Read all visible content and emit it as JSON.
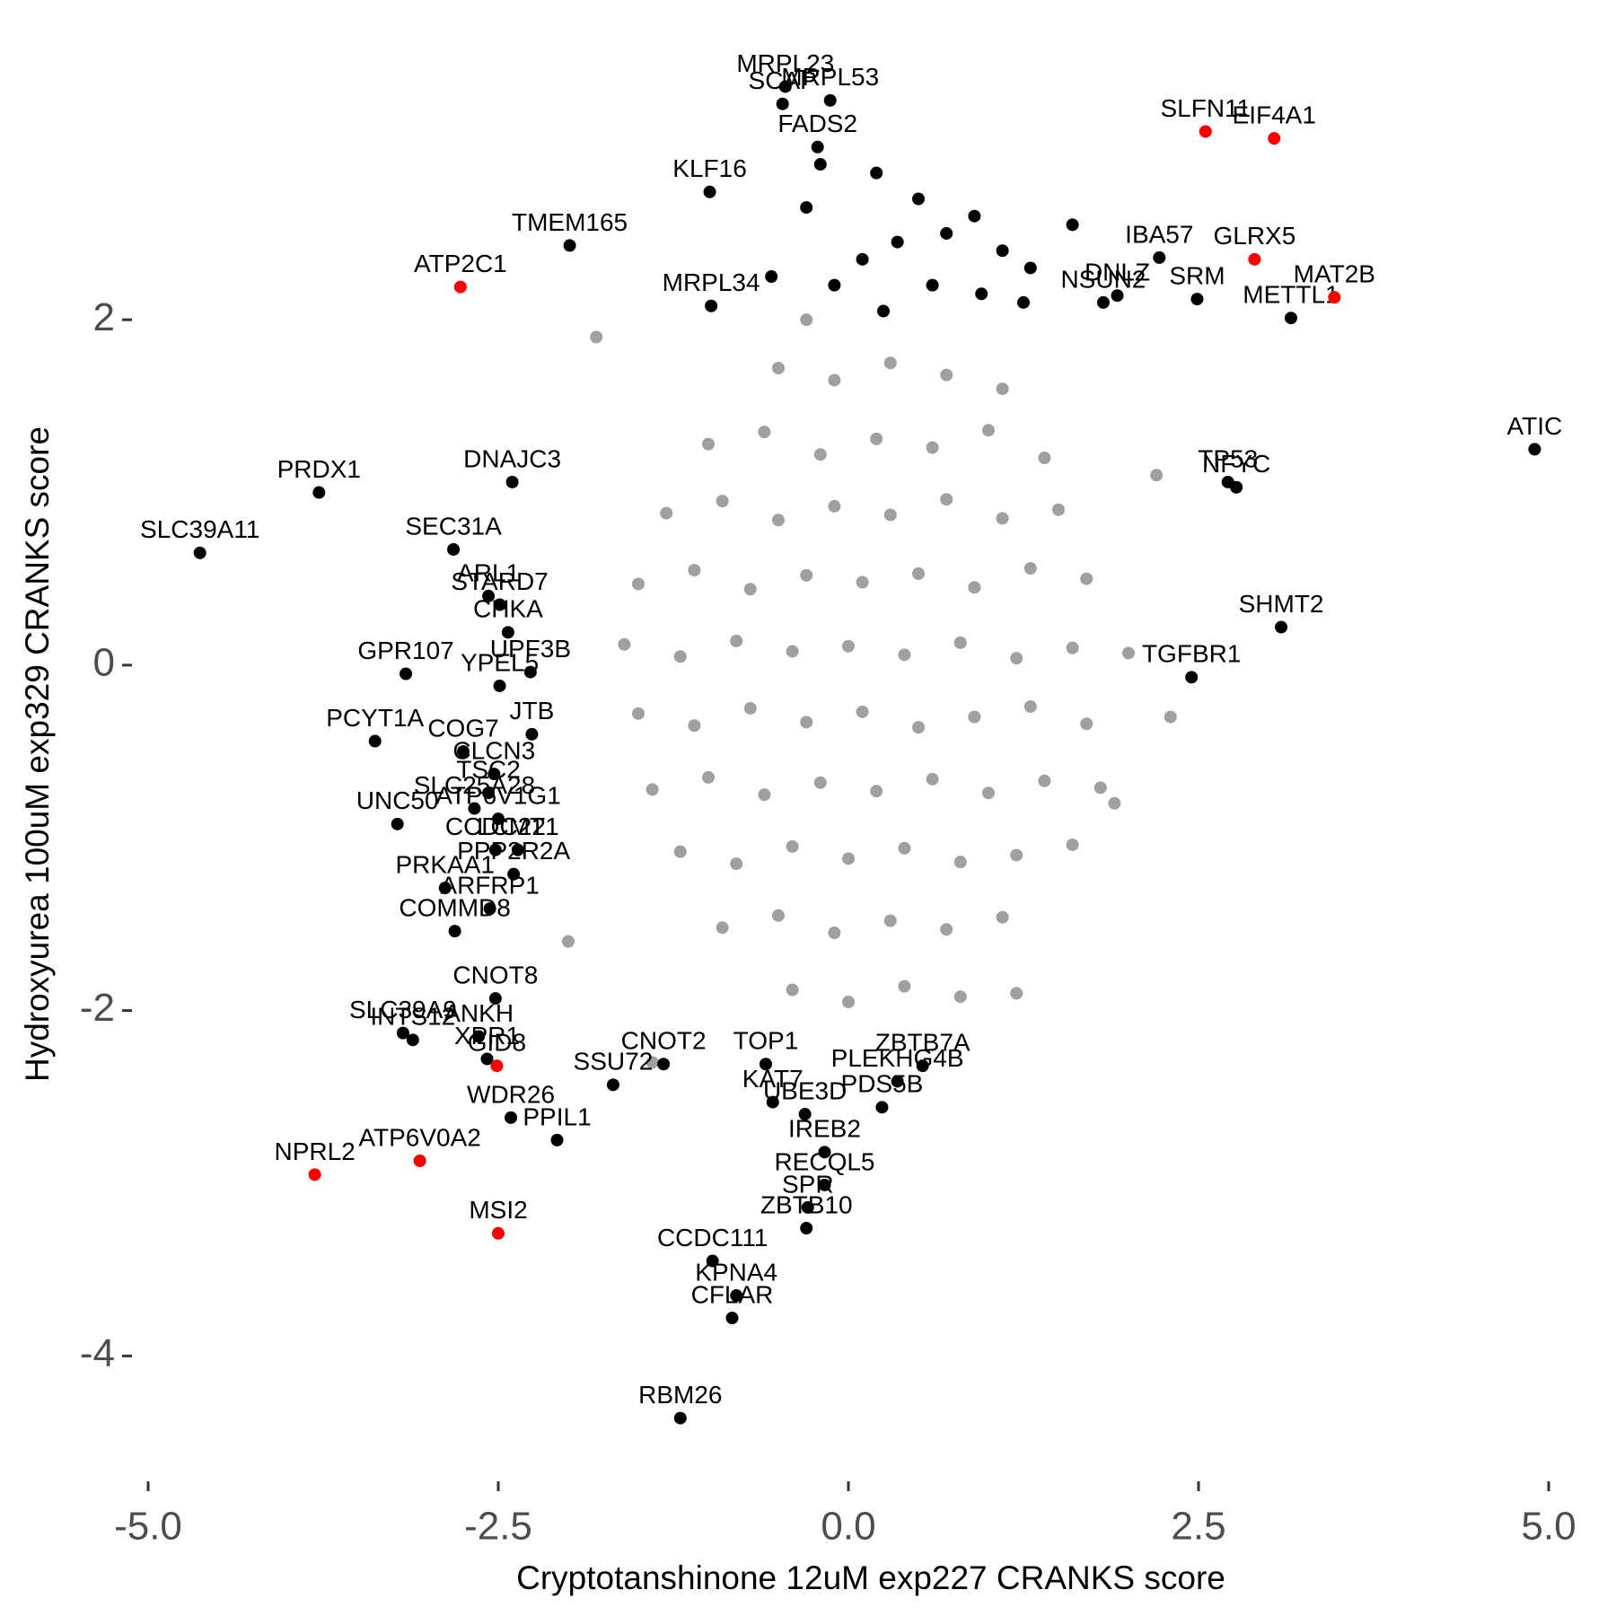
{
  "chart_data": {
    "type": "scatter",
    "x_label": "Cryptotanshinone 12uM exp227 CRANKS score",
    "y_label": "Hydroxyurea 100uM exp329 CRANKS score",
    "xlim": [
      -5.1,
      5.1
    ],
    "ylim": [
      -4.7,
      3.5
    ],
    "xticks": [
      {
        "value": -5,
        "label": "-5.0"
      },
      -2.5,
      {
        "value": 0,
        "label": "0.0"
      },
      2.5,
      {
        "value": 5,
        "label": "5.0"
      }
    ],
    "yticks": [
      -4,
      -2,
      0,
      2
    ],
    "series": [
      {
        "color": "#a0a0a0",
        "x": [
          -0.5,
          -0.1,
          0.3,
          0.7,
          1.1,
          -1.0,
          -0.6,
          -0.2,
          0.2,
          0.6,
          1.0,
          1.4,
          -1.3,
          -0.9,
          -0.5,
          -0.1,
          0.3,
          0.7,
          1.1,
          1.5,
          -1.5,
          -1.1,
          -0.7,
          -0.3,
          0.1,
          0.5,
          0.9,
          1.3,
          1.7,
          -1.6,
          -1.2,
          -0.8,
          -0.4,
          0,
          0.4,
          0.8,
          1.2,
          1.6,
          2.0,
          -1.5,
          -1.1,
          -0.7,
          -0.3,
          0.1,
          0.5,
          0.9,
          1.3,
          1.7,
          -1.4,
          -1.0,
          -0.6,
          -0.2,
          0.2,
          0.6,
          1.0,
          1.4,
          1.8,
          -1.2,
          -0.8,
          -0.4,
          0,
          0.4,
          0.8,
          1.2,
          1.6,
          -0.9,
          -0.5,
          -0.1,
          0.3,
          0.7,
          1.1,
          -0.4,
          0,
          0.4,
          0.8,
          -1.8,
          1.9,
          2.3,
          -2.0,
          1.2,
          -1.4,
          2.2,
          -0.3
        ],
        "values": [
          1.72,
          1.65,
          1.75,
          1.68,
          1.6,
          1.28,
          1.35,
          1.22,
          1.31,
          1.26,
          1.36,
          1.2,
          0.88,
          0.95,
          0.84,
          0.92,
          0.87,
          0.96,
          0.85,
          0.9,
          0.47,
          0.55,
          0.44,
          0.52,
          0.48,
          0.53,
          0.45,
          0.56,
          0.5,
          0.12,
          0.05,
          0.14,
          0.08,
          0.11,
          0.06,
          0.13,
          0.04,
          0.1,
          0.07,
          -0.28,
          -0.35,
          -0.25,
          -0.33,
          -0.27,
          -0.36,
          -0.3,
          -0.24,
          -0.34,
          -0.72,
          -0.65,
          -0.75,
          -0.68,
          -0.73,
          -0.66,
          -0.74,
          -0.67,
          -0.71,
          -1.08,
          -1.15,
          -1.05,
          -1.12,
          -1.06,
          -1.14,
          -1.1,
          -1.04,
          -1.52,
          -1.45,
          -1.55,
          -1.48,
          -1.53,
          -1.46,
          -1.88,
          -1.95,
          -1.86,
          -1.92,
          1.9,
          -0.8,
          -0.3,
          -1.6,
          -1.9,
          -2.3,
          1.1,
          2.0
        ]
      },
      {
        "color": "#000000",
        "x": [
          -0.45,
          -0.13,
          -0.47,
          -0.22,
          -0.99,
          -1.99,
          2.22,
          1.92,
          2.49,
          3.16,
          1.82,
          -0.98,
          4.9,
          2.71,
          2.77,
          -3.78,
          -2.4,
          -2.82,
          -4.63,
          -2.57,
          -2.49,
          -2.43,
          3.09,
          -3.16,
          -2.27,
          2.45,
          -2.49,
          -2.26,
          -2.75,
          -3.38,
          -2.53,
          -2.57,
          -2.67,
          -2.5,
          -3.22,
          -2.52,
          -2.36,
          -2.39,
          -2.88,
          -2.56,
          -2.81,
          -2.52,
          -3.18,
          -3.11,
          -2.64,
          -2.58,
          -1.32,
          -1.68,
          -0.59,
          0.53,
          0.35,
          -0.54,
          0.24,
          -0.31,
          -2.41,
          -2.08,
          -0.17,
          -0.17,
          -0.29,
          -0.3,
          -0.97,
          -0.8,
          -0.83,
          -1.2,
          -0.2,
          0.2,
          0.5,
          0.9,
          -0.3,
          0.35,
          0.7,
          1.1,
          1.3,
          1.6,
          0.1,
          -0.1,
          0.6,
          0.95,
          1.25,
          -0.55,
          0.25
        ],
        "values": [
          3.35,
          3.27,
          3.25,
          3.0,
          2.74,
          2.43,
          2.36,
          2.14,
          2.12,
          2.01,
          2.1,
          2.08,
          1.25,
          1.06,
          1.03,
          1.0,
          1.06,
          0.67,
          0.65,
          0.4,
          0.35,
          0.19,
          0.22,
          -0.05,
          -0.04,
          -0.07,
          -0.12,
          -0.4,
          -0.5,
          -0.44,
          -0.63,
          -0.74,
          -0.83,
          -0.89,
          -0.92,
          -1.07,
          -1.07,
          -1.21,
          -1.29,
          -1.41,
          -1.54,
          -1.93,
          -2.13,
          -2.17,
          -2.15,
          -2.28,
          -2.31,
          -2.43,
          -2.31,
          -2.32,
          -2.41,
          -2.53,
          -2.56,
          -2.6,
          -2.62,
          -2.75,
          -2.82,
          -3.01,
          -3.14,
          -3.26,
          -3.45,
          -3.65,
          -3.78,
          -4.36,
          2.9,
          2.85,
          2.7,
          2.6,
          2.65,
          2.45,
          2.5,
          2.4,
          2.3,
          2.55,
          2.35,
          2.2,
          2.2,
          2.15,
          2.1,
          2.25,
          2.05
        ],
        "labels": [
          "MRPL23",
          "MRPL53",
          "SCAP",
          "FADS2",
          "KLF16",
          "TMEM165",
          "IBA57",
          "DNLZ",
          "SRM",
          "METTL1",
          "NSUN2",
          "MRPL34",
          "ATIC",
          "TP53",
          "NFYC",
          "PRDX1",
          "DNAJC3",
          "SEC31A",
          "SLC39A11",
          "ARL1",
          "STARD7",
          "CHKA",
          "SHMT2",
          "GPR107",
          "UPF3B",
          "TGFBR1",
          "YPEL5",
          "JTB",
          "COG7",
          "PCYT1A",
          "CLCN3",
          "TSC2",
          "SLC25A28",
          "ATP6V1G1",
          "UNC50",
          "CCDC22",
          "LCMT1",
          "PPP2R2A",
          "PRKAA1",
          "ARFRP1",
          "COMMD8",
          "CNOT8",
          "SLC39A9",
          "INTS12",
          "ANKH",
          "XPR1",
          "CNOT2",
          "SSU72",
          "TOP1",
          "ZBTB7A",
          "PLEKHG4B",
          "KAT7",
          "PDS5B",
          "UBE3D",
          "WDR26",
          "PPIL1",
          "IREB2",
          "RECQL5",
          "SPR",
          "ZBTB10",
          "CCDC111",
          "KPNA4",
          "CFLAR",
          "RBM26",
          null,
          null,
          null,
          null,
          null,
          null,
          null,
          null,
          null,
          null,
          null,
          null,
          null,
          null,
          null,
          null,
          null
        ]
      },
      {
        "color": "#ff0000",
        "x": [
          2.55,
          3.04,
          2.9,
          -2.77,
          3.47,
          -2.51,
          -3.81,
          -3.06,
          -2.5
        ],
        "values": [
          3.09,
          3.05,
          2.35,
          2.19,
          2.13,
          -2.32,
          -2.95,
          -2.87,
          -3.29
        ],
        "labels": [
          "SLFN11",
          "EIF4A1",
          "GLRX5",
          "ATP2C1",
          "MAT2B",
          "GID8",
          "NPRL2",
          "ATP6V0A2",
          "MSI2"
        ]
      }
    ]
  }
}
